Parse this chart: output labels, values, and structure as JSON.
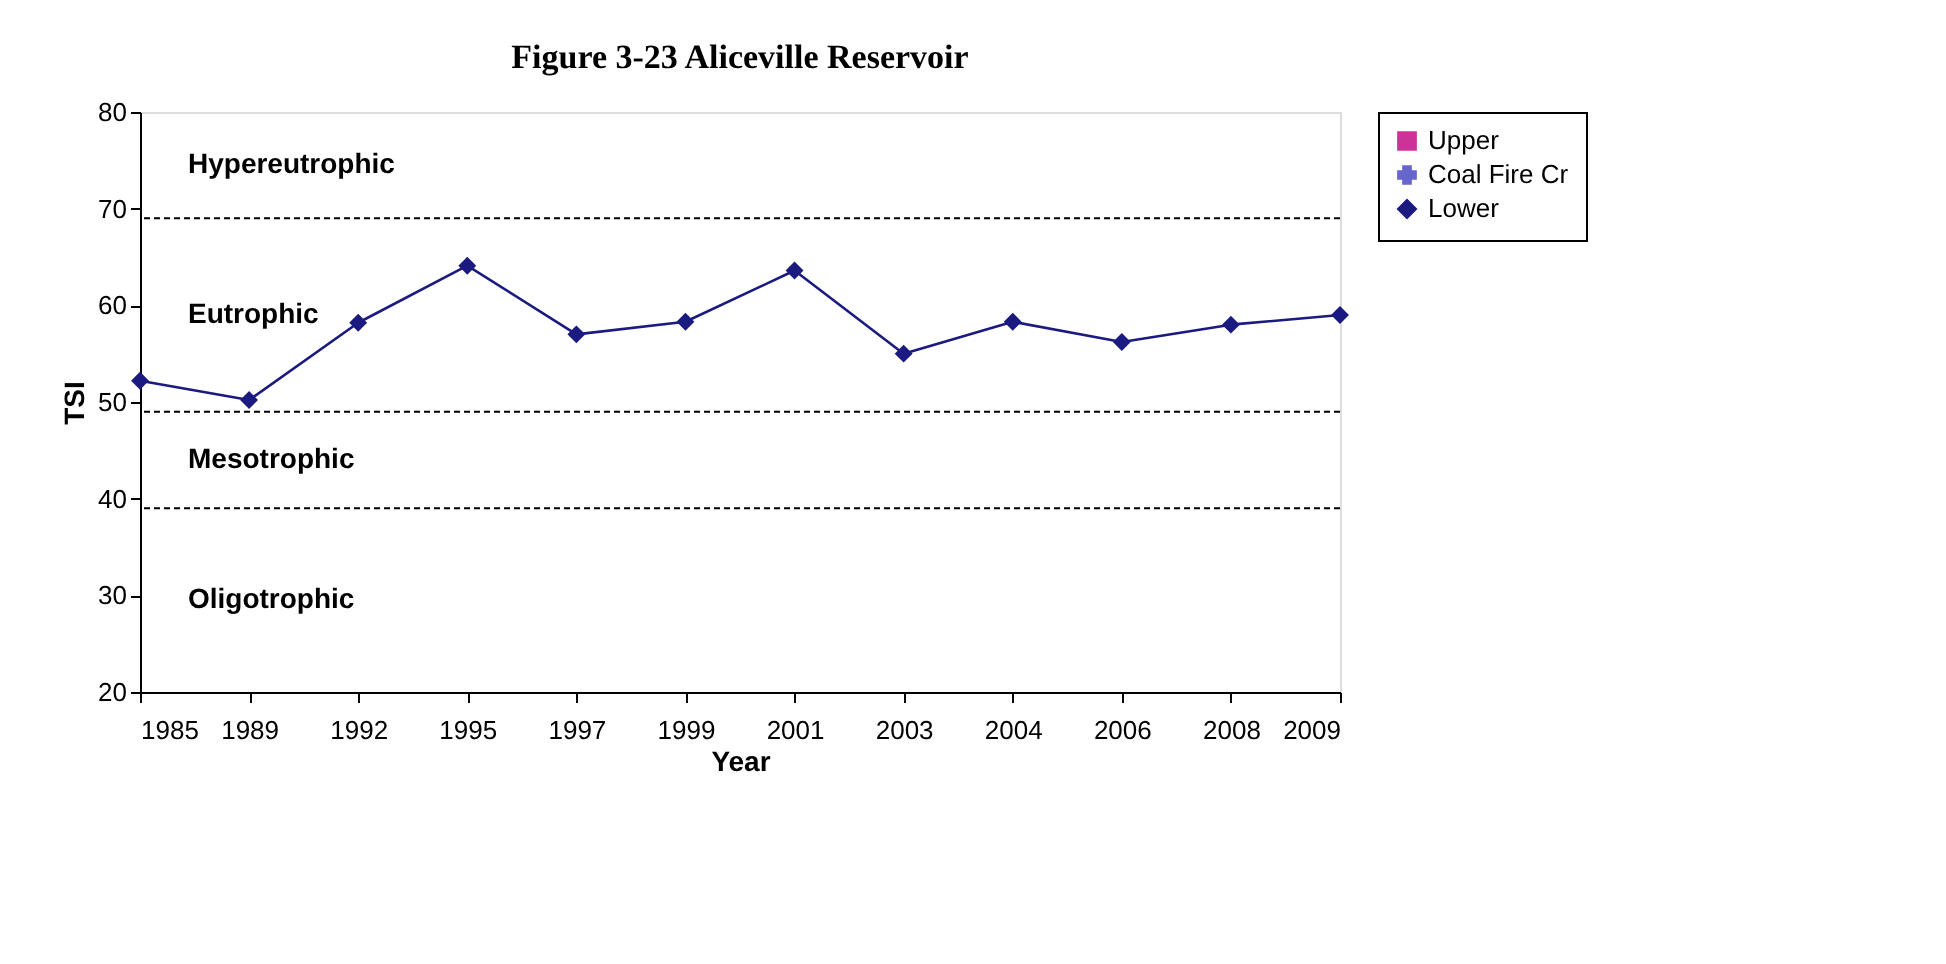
{
  "chart_data": {
    "type": "line",
    "title": "Figure 3-23 Aliceville Reservoir",
    "xlabel": "Year",
    "ylabel": "TSI",
    "categories": [
      "1985",
      "1989",
      "1992",
      "1995",
      "1997",
      "1999",
      "2001",
      "2003",
      "2004",
      "2006",
      "2008",
      "2009"
    ],
    "series": [
      {
        "name": "Upper",
        "color": "#cc3399",
        "marker": "square",
        "values": [
          null,
          null,
          null,
          null,
          null,
          null,
          null,
          null,
          null,
          null,
          null,
          null
        ]
      },
      {
        "name": "Coal Fire Cr",
        "color": "#6666cc",
        "marker": "cross",
        "values": [
          null,
          null,
          null,
          null,
          null,
          null,
          null,
          null,
          null,
          null,
          null,
          null
        ]
      },
      {
        "name": "Lower",
        "color": "#1a1a80",
        "marker": "diamond",
        "values": [
          52.2,
          50.2,
          58.2,
          64.1,
          57,
          58.3,
          63.6,
          55,
          58.3,
          56.2,
          58,
          59
        ]
      }
    ],
    "ylim": [
      20,
      80
    ],
    "yticks": [
      20,
      30,
      40,
      50,
      60,
      70,
      80
    ],
    "grid": false,
    "legend": "right",
    "ref_lines": [
      {
        "axis": "y",
        "value": 69,
        "line_style": "dashed",
        "color": "#000000"
      },
      {
        "axis": "y",
        "value": 49,
        "line_style": "dashed",
        "color": "#000000"
      },
      {
        "axis": "y",
        "value": 39,
        "line_style": "dashed",
        "color": "#000000"
      }
    ],
    "annotations": [
      "Hypereutrophic",
      "Eutrophic",
      "Mesotrophic",
      "Oligotrophic"
    ]
  }
}
